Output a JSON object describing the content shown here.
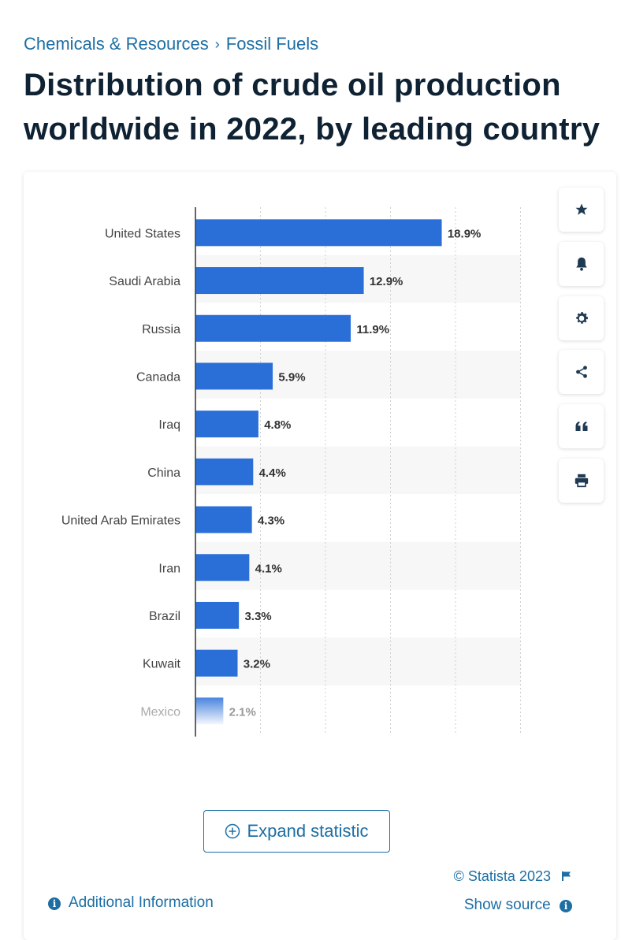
{
  "breadcrumb": {
    "items": [
      "Chemicals & Resources",
      "Fossil Fuels"
    ],
    "separator": "›"
  },
  "page_title": "Distribution of crude oil production worldwide in 2022, by leading country",
  "toolbar": {
    "icons": [
      "star-icon",
      "bell-icon",
      "gear-icon",
      "share-icon",
      "quote-icon",
      "print-icon"
    ]
  },
  "expand_label": "Expand statistic",
  "copyright": "© Statista 2023",
  "show_source": "Show source",
  "additional_info": "Additional Information",
  "colors": {
    "bar": "#2a6fd8",
    "link": "#1c6ea4",
    "title": "#0f2233",
    "band": "#f7f7f7"
  },
  "chart_data": {
    "type": "bar",
    "orientation": "horizontal",
    "categories": [
      "United States",
      "Saudi Arabia",
      "Russia",
      "Canada",
      "Iraq",
      "China",
      "United Arab Emirates",
      "Iran",
      "Brazil",
      "Kuwait",
      "Mexico"
    ],
    "values": [
      18.9,
      12.9,
      11.9,
      5.9,
      4.8,
      4.4,
      4.3,
      4.1,
      3.3,
      3.2,
      2.1
    ],
    "value_labels": [
      "18.9%",
      "12.9%",
      "11.9%",
      "5.9%",
      "4.8%",
      "4.4%",
      "4.3%",
      "4.1%",
      "3.3%",
      "3.2%",
      "2.1%"
    ],
    "xlim": [
      0,
      25
    ],
    "grid": true,
    "title": "",
    "xlabel": "",
    "ylabel": ""
  }
}
